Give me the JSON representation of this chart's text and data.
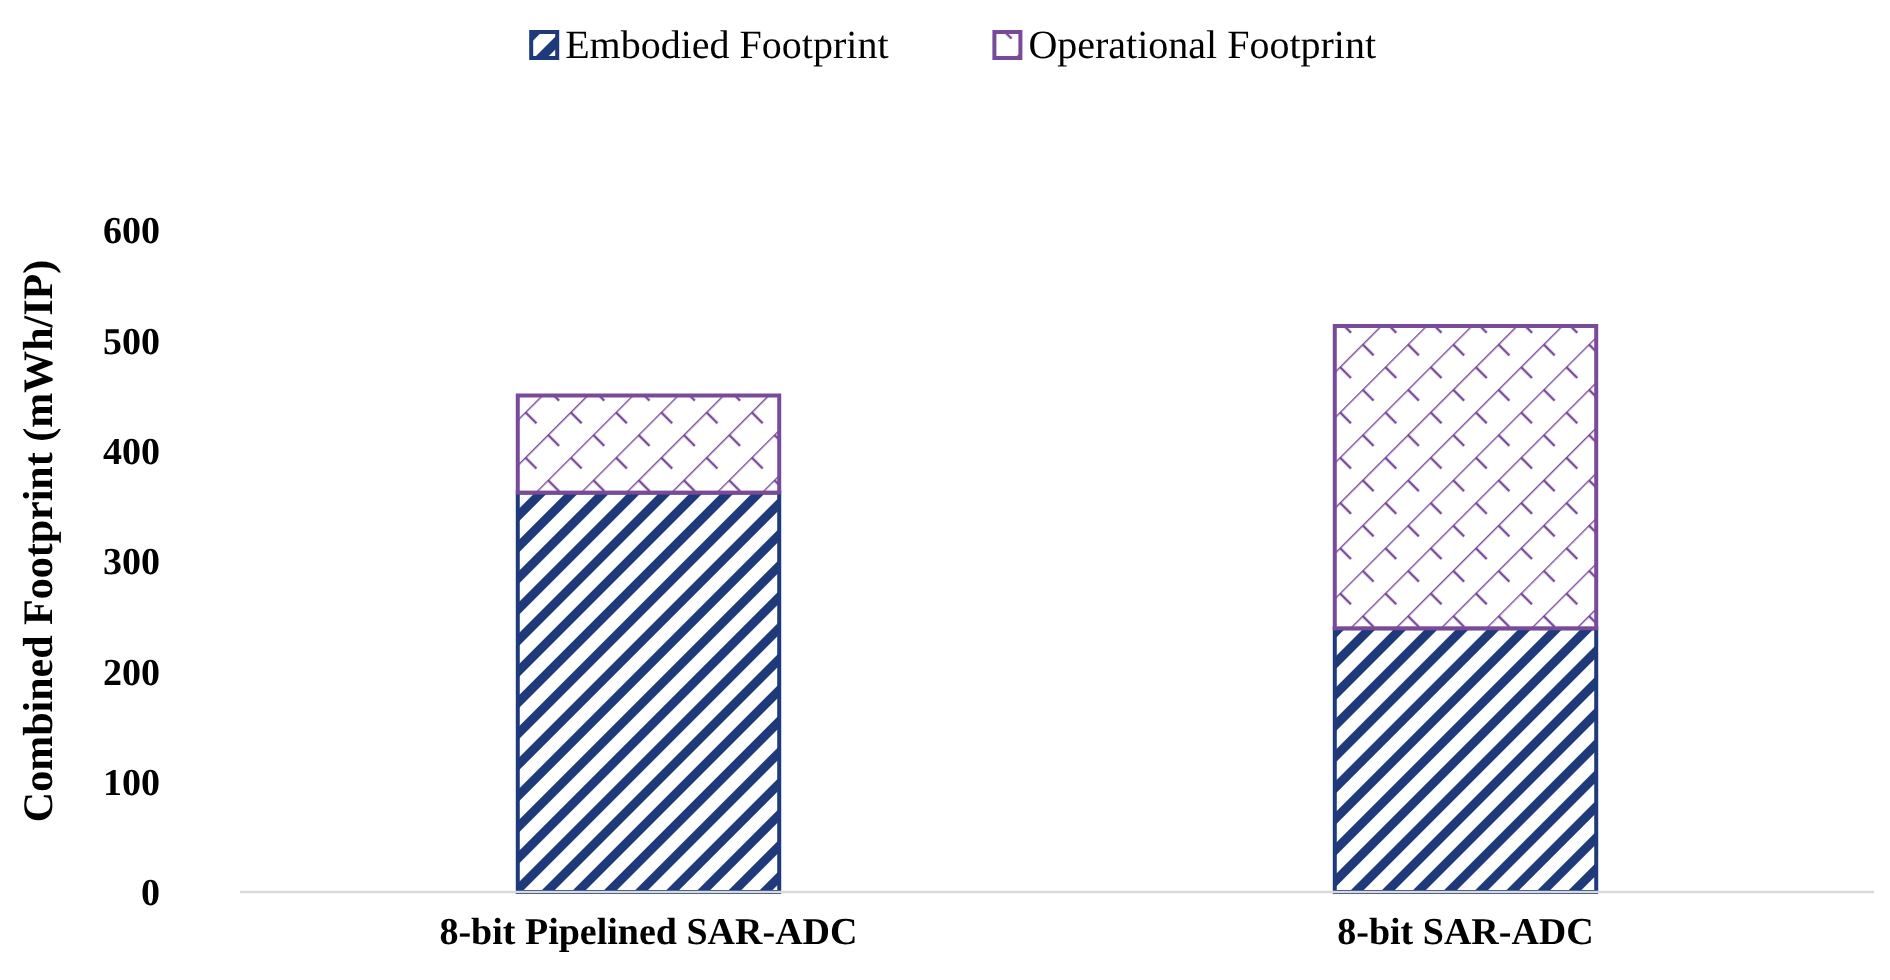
{
  "chart_data": {
    "type": "bar",
    "stacked": true,
    "ylabel": "Combined Footprint (mWh/IP)",
    "categories": [
      "8-bit Pipelined SAR-ADC",
      "8-bit SAR-ADC"
    ],
    "series": [
      {
        "name": "Embodied Footprint",
        "color": "#1f3a7a",
        "values": [
          362,
          239
        ]
      },
      {
        "name": "Operational Footprint",
        "color": "#7a4a9a",
        "values": [
          88,
          274
        ]
      }
    ],
    "ylim": [
      0,
      600
    ],
    "yticks": [
      0,
      100,
      200,
      300,
      400,
      500,
      600
    ],
    "grid": false,
    "legend": "top"
  }
}
